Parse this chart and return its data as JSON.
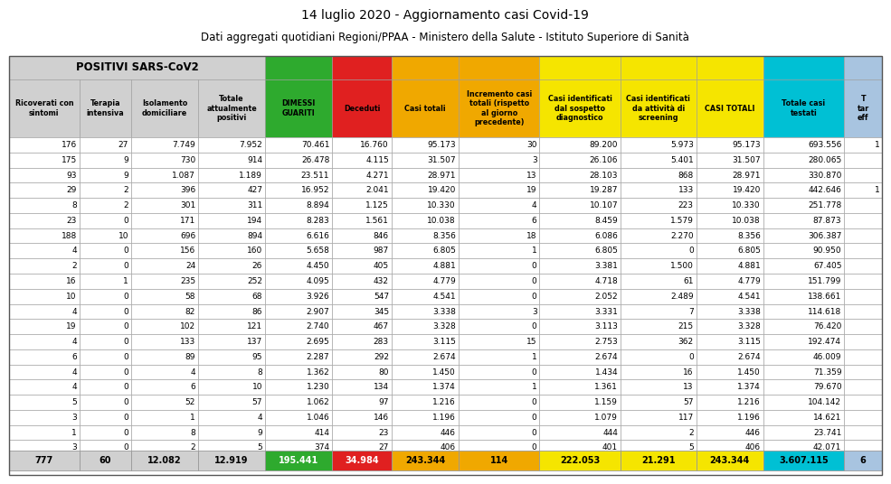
{
  "title1": "14 luglio 2020 - Aggiornamento casi Covid-19",
  "title2": "Dati aggregati quotidiani Regioni/PPAA - Ministero della Salute - Istituto Superiore di Sanità",
  "col_headers": [
    "Ricoverati con\nsintomi",
    "Terapia\nintensiva",
    "Isolamento\ndomiciliare",
    "Totale\nattualmente\npositivi",
    "DIMESSI\nGUARITI",
    "Deceduti",
    "Casi totali",
    "Incremento casi\ntotali (rispetto\nal giorno\nprecedente)",
    "Casi identificati\ndal sospetto\ndiagnostico",
    "Casi identificati\nda attività di\nscreening",
    "CASI TOTALI",
    "Totale casi\ntestati",
    "T\ntar\neff"
  ],
  "col_colors": [
    "#d0d0d0",
    "#d0d0d0",
    "#d0d0d0",
    "#d0d0d0",
    "#2eaa2e",
    "#e02020",
    "#f0a800",
    "#f0a800",
    "#f5e500",
    "#f5e500",
    "#f5e500",
    "#00c0d4",
    "#a8c4e0"
  ],
  "col_widths": [
    6.5,
    4.8,
    6.2,
    6.2,
    6.2,
    5.5,
    6.2,
    7.5,
    7.5,
    7.0,
    6.2,
    7.5,
    3.5
  ],
  "rows": [
    [
      "176",
      "27",
      "7.749",
      "7.952",
      "70.461",
      "16.760",
      "95.173",
      "30",
      "89.200",
      "5.973",
      "95.173",
      "693.556",
      "1"
    ],
    [
      "175",
      "9",
      "730",
      "914",
      "26.478",
      "4.115",
      "31.507",
      "3",
      "26.106",
      "5.401",
      "31.507",
      "280.065",
      ""
    ],
    [
      "93",
      "9",
      "1.087",
      "1.189",
      "23.511",
      "4.271",
      "28.971",
      "13",
      "28.103",
      "868",
      "28.971",
      "330.870",
      ""
    ],
    [
      "29",
      "2",
      "396",
      "427",
      "16.952",
      "2.041",
      "19.420",
      "19",
      "19.287",
      "133",
      "19.420",
      "442.646",
      "1"
    ],
    [
      "8",
      "2",
      "301",
      "311",
      "8.894",
      "1.125",
      "10.330",
      "4",
      "10.107",
      "223",
      "10.330",
      "251.778",
      ""
    ],
    [
      "23",
      "0",
      "171",
      "194",
      "8.283",
      "1.561",
      "10.038",
      "6",
      "8.459",
      "1.579",
      "10.038",
      "87.873",
      ""
    ],
    [
      "188",
      "10",
      "696",
      "894",
      "6.616",
      "846",
      "8.356",
      "18",
      "6.086",
      "2.270",
      "8.356",
      "306.387",
      ""
    ],
    [
      "4",
      "0",
      "156",
      "160",
      "5.658",
      "987",
      "6.805",
      "1",
      "6.805",
      "0",
      "6.805",
      "90.950",
      ""
    ],
    [
      "2",
      "0",
      "24",
      "26",
      "4.450",
      "405",
      "4.881",
      "0",
      "3.381",
      "1.500",
      "4.881",
      "67.405",
      ""
    ],
    [
      "16",
      "1",
      "235",
      "252",
      "4.095",
      "432",
      "4.779",
      "0",
      "4.718",
      "61",
      "4.779",
      "151.799",
      ""
    ],
    [
      "10",
      "0",
      "58",
      "68",
      "3.926",
      "547",
      "4.541",
      "0",
      "2.052",
      "2.489",
      "4.541",
      "138.661",
      ""
    ],
    [
      "4",
      "0",
      "82",
      "86",
      "2.907",
      "345",
      "3.338",
      "3",
      "3.331",
      "7",
      "3.338",
      "114.618",
      ""
    ],
    [
      "19",
      "0",
      "102",
      "121",
      "2.740",
      "467",
      "3.328",
      "0",
      "3.113",
      "215",
      "3.328",
      "76.420",
      ""
    ],
    [
      "4",
      "0",
      "133",
      "137",
      "2.695",
      "283",
      "3.115",
      "15",
      "2.753",
      "362",
      "3.115",
      "192.474",
      ""
    ],
    [
      "6",
      "0",
      "89",
      "95",
      "2.287",
      "292",
      "2.674",
      "1",
      "2.674",
      "0",
      "2.674",
      "46.009",
      ""
    ],
    [
      "4",
      "0",
      "4",
      "8",
      "1.362",
      "80",
      "1.450",
      "0",
      "1.434",
      "16",
      "1.450",
      "71.359",
      ""
    ],
    [
      "4",
      "0",
      "6",
      "10",
      "1.230",
      "134",
      "1.374",
      "1",
      "1.361",
      "13",
      "1.374",
      "79.670",
      ""
    ],
    [
      "5",
      "0",
      "52",
      "57",
      "1.062",
      "97",
      "1.216",
      "0",
      "1.159",
      "57",
      "1.216",
      "104.142",
      ""
    ],
    [
      "3",
      "0",
      "1",
      "4",
      "1.046",
      "146",
      "1.196",
      "0",
      "1.079",
      "117",
      "1.196",
      "14.621",
      ""
    ],
    [
      "1",
      "0",
      "8",
      "9",
      "414",
      "23",
      "446",
      "0",
      "444",
      "2",
      "446",
      "23.741",
      ""
    ],
    [
      "3",
      "0",
      "2",
      "5",
      "374",
      "27",
      "406",
      "0",
      "401",
      "5",
      "406",
      "42.071",
      ""
    ]
  ],
  "totals": [
    "777",
    "60",
    "12.082",
    "12.919",
    "195.441",
    "34.984",
    "243.344",
    "114",
    "222.053",
    "21.291",
    "243.344",
    "3.607.115",
    "6"
  ],
  "total_text_colors": [
    "black",
    "black",
    "black",
    "black",
    "white",
    "white",
    "black",
    "black",
    "black",
    "black",
    "black",
    "black",
    "black"
  ],
  "bg_color": "#ffffff",
  "border_color": "#999999",
  "header_positivi_bg": "#d0d0d0",
  "data_row_bg": "#ffffff"
}
